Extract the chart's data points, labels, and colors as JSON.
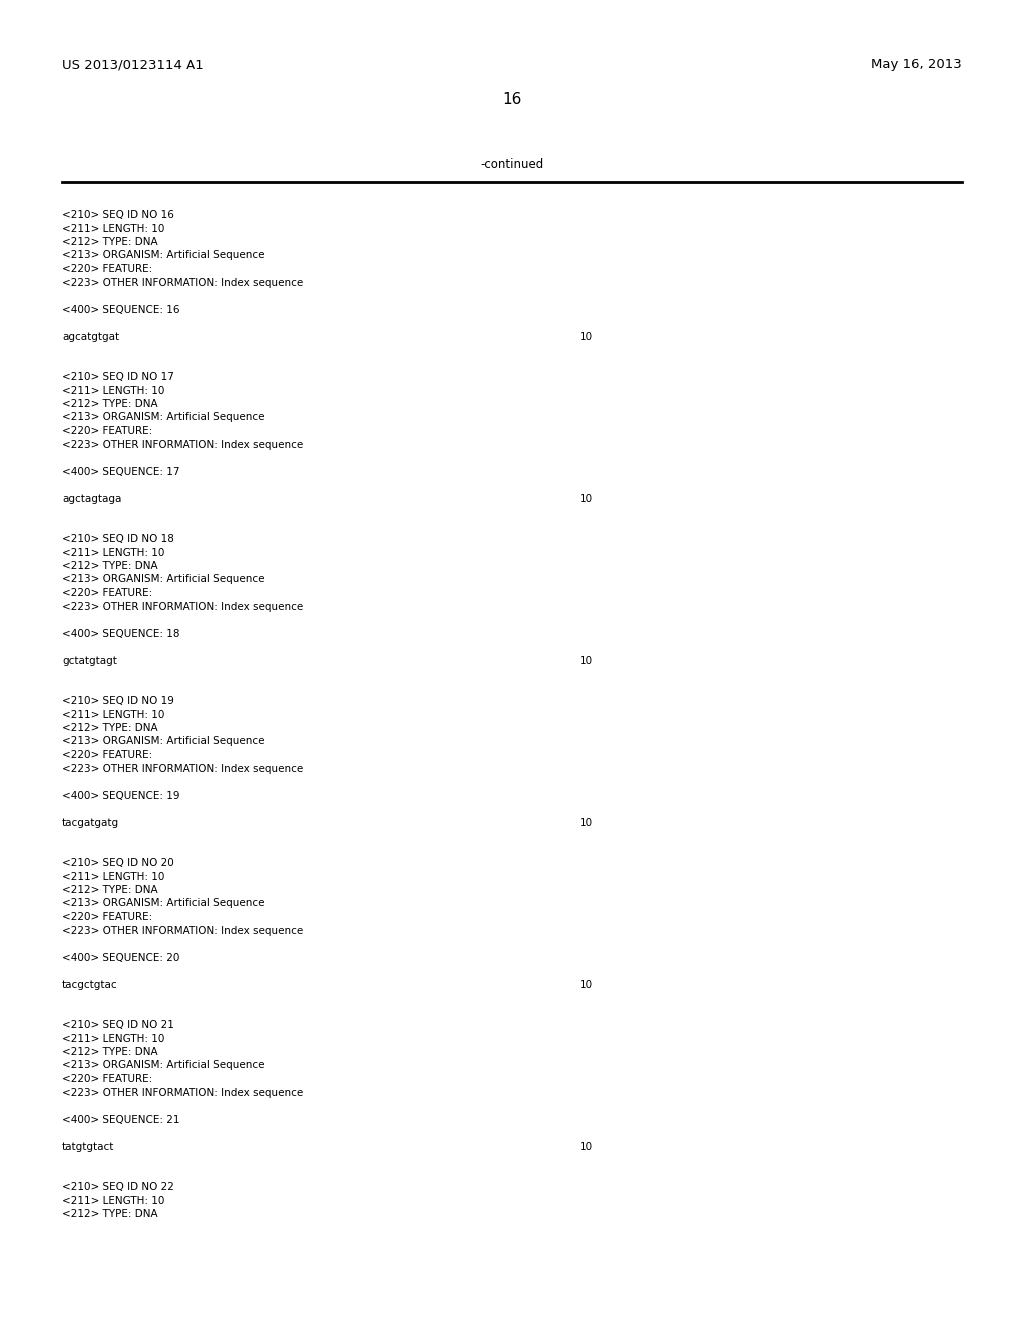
{
  "patent_number": "US 2013/0123114 A1",
  "date": "May 16, 2013",
  "page_number": "16",
  "continued_label": "-continued",
  "background_color": "#ffffff",
  "text_color": "#000000",
  "monospace_font_size": 7.5,
  "header_font_size": 9.5,
  "page_num_font_size": 11,
  "continued_font_size": 8.5,
  "content_blocks": [
    {
      "meta_lines": [
        "<210> SEQ ID NO 16",
        "<211> LENGTH: 10",
        "<212> TYPE: DNA",
        "<213> ORGANISM: Artificial Sequence",
        "<220> FEATURE:",
        "<223> OTHER INFORMATION: Index sequence"
      ],
      "seq_label": "<400> SEQUENCE: 16",
      "sequence": "agcatgtgat",
      "seq_num": "10"
    },
    {
      "meta_lines": [
        "<210> SEQ ID NO 17",
        "<211> LENGTH: 10",
        "<212> TYPE: DNA",
        "<213> ORGANISM: Artificial Sequence",
        "<220> FEATURE:",
        "<223> OTHER INFORMATION: Index sequence"
      ],
      "seq_label": "<400> SEQUENCE: 17",
      "sequence": "agctagtaga",
      "seq_num": "10"
    },
    {
      "meta_lines": [
        "<210> SEQ ID NO 18",
        "<211> LENGTH: 10",
        "<212> TYPE: DNA",
        "<213> ORGANISM: Artificial Sequence",
        "<220> FEATURE:",
        "<223> OTHER INFORMATION: Index sequence"
      ],
      "seq_label": "<400> SEQUENCE: 18",
      "sequence": "gctatgtagt",
      "seq_num": "10"
    },
    {
      "meta_lines": [
        "<210> SEQ ID NO 19",
        "<211> LENGTH: 10",
        "<212> TYPE: DNA",
        "<213> ORGANISM: Artificial Sequence",
        "<220> FEATURE:",
        "<223> OTHER INFORMATION: Index sequence"
      ],
      "seq_label": "<400> SEQUENCE: 19",
      "sequence": "tacgatgatg",
      "seq_num": "10"
    },
    {
      "meta_lines": [
        "<210> SEQ ID NO 20",
        "<211> LENGTH: 10",
        "<212> TYPE: DNA",
        "<213> ORGANISM: Artificial Sequence",
        "<220> FEATURE:",
        "<223> OTHER INFORMATION: Index sequence"
      ],
      "seq_label": "<400> SEQUENCE: 20",
      "sequence": "tacgctgtac",
      "seq_num": "10"
    },
    {
      "meta_lines": [
        "<210> SEQ ID NO 21",
        "<211> LENGTH: 10",
        "<212> TYPE: DNA",
        "<213> ORGANISM: Artificial Sequence",
        "<220> FEATURE:",
        "<223> OTHER INFORMATION: Index sequence"
      ],
      "seq_label": "<400> SEQUENCE: 21",
      "sequence": "tatgtgtact",
      "seq_num": "10"
    },
    {
      "meta_lines": [
        "<210> SEQ ID NO 22",
        "<211> LENGTH: 10",
        "<212> TYPE: DNA"
      ],
      "seq_label": null,
      "sequence": null,
      "seq_num": null
    }
  ]
}
